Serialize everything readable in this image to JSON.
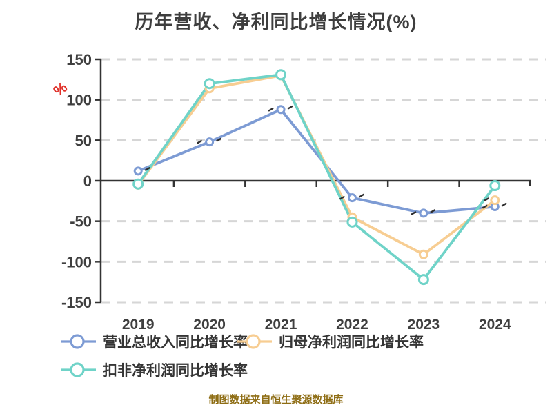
{
  "title": "历年营收、净利同比增长情况(%)",
  "source_note": "制图数据来自恒生聚源数据库",
  "chart_data": {
    "type": "line",
    "title": "历年营收、净利同比增长情况(%)",
    "categories": [
      "2019",
      "2020",
      "2021",
      "2022",
      "2023",
      "2024"
    ],
    "series": [
      {
        "name": "营业总收入同比增长率",
        "color": "#7d9bd4",
        "marker_radius": 5,
        "values": [
          12,
          48,
          88,
          -21,
          -40,
          -32
        ]
      },
      {
        "name": "归母净利润同比增长率",
        "color": "#f7cd92",
        "marker_radius": 5.5,
        "values": [
          -5,
          114,
          130,
          -45,
          -91,
          -24
        ]
      },
      {
        "name": "扣非净利润同比增长率",
        "color": "#6fd3c8",
        "marker_radius": 6.5,
        "values": [
          -4,
          120,
          131,
          -51,
          -122,
          -6
        ]
      }
    ],
    "xlabel": "",
    "ylabel": "%",
    "ylabel_color": "#e0312a",
    "ylim": [
      -150,
      150
    ],
    "y_ticks": [
      150,
      100,
      50,
      0,
      -50,
      -100,
      -150
    ],
    "grid": "dashed-horizontal",
    "grid_color": "#d6d6d6",
    "axis_color": "#333333",
    "tick_label_color": "#3f3f3f",
    "legend_position": "bottom",
    "marker_style": "circle-white-fill",
    "tiny_point_label_marks": true
  }
}
